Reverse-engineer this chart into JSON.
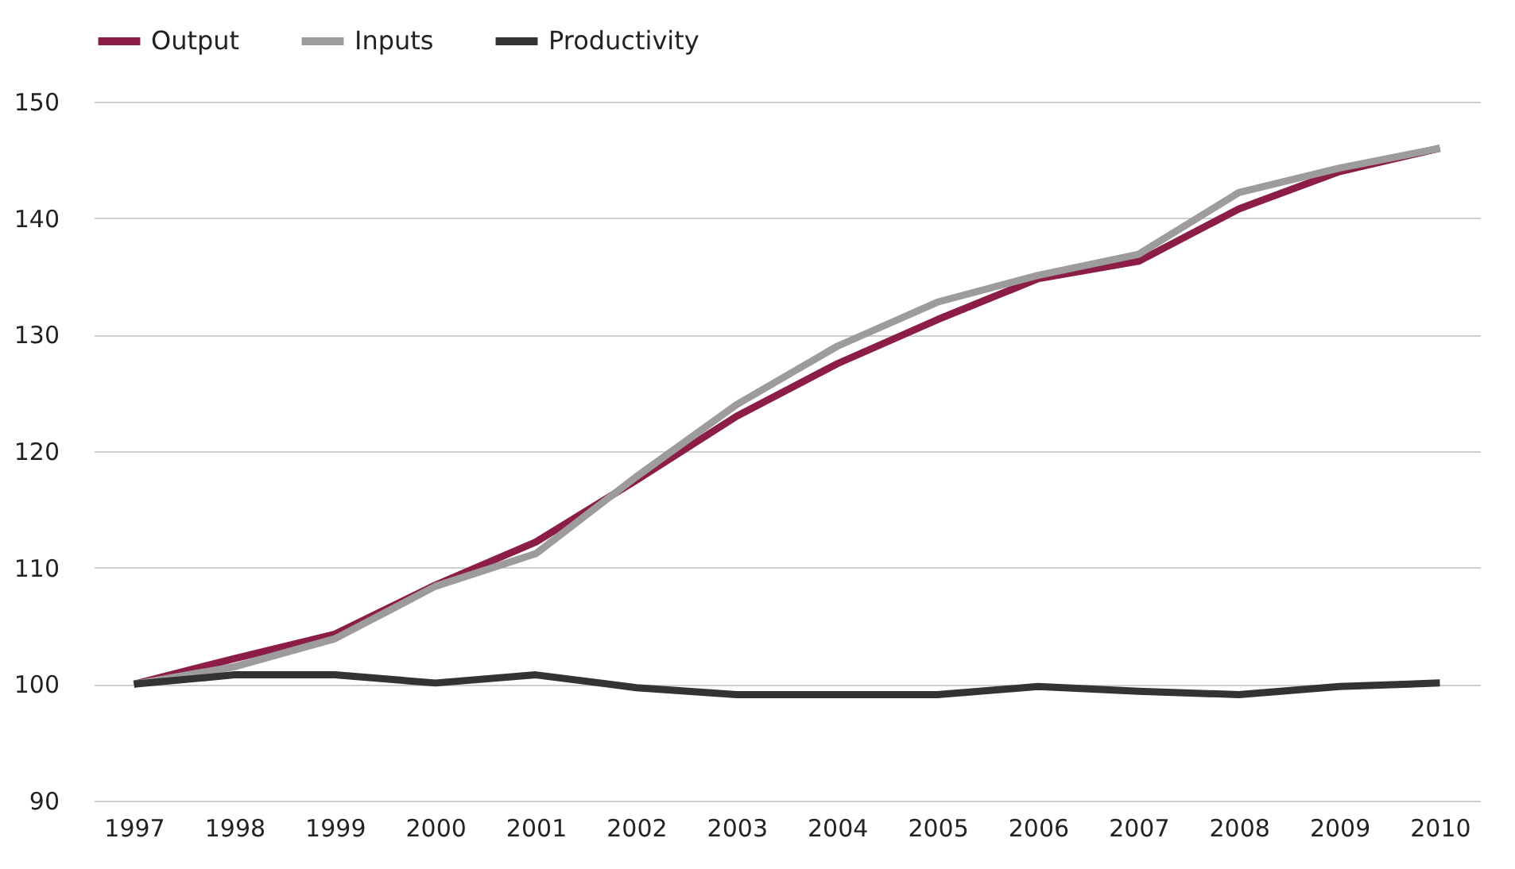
{
  "chart_data": {
    "type": "line",
    "categories": [
      "1997",
      "1998",
      "1999",
      "2000",
      "2001",
      "2002",
      "2003",
      "2004",
      "2005",
      "2006",
      "2007",
      "2008",
      "2009",
      "2010"
    ],
    "series": [
      {
        "name": "Output",
        "color": "#8c1d47",
        "values": [
          100,
          102.2,
          104.3,
          108.5,
          112.2,
          117.5,
          123,
          127.5,
          131.3,
          134.8,
          136.3,
          140.8,
          144,
          146
        ]
      },
      {
        "name": "Inputs",
        "color": "#9d9b9b",
        "values": [
          100,
          101.5,
          103.9,
          108.4,
          111.2,
          117.8,
          124,
          129,
          132.8,
          135.1,
          136.9,
          142.2,
          144.3,
          146
        ]
      },
      {
        "name": "Productivity",
        "color": "#333333",
        "values": [
          100,
          100.8,
          100.8,
          100.1,
          100.8,
          99.7,
          99.1,
          99.1,
          99.1,
          99.8,
          99.4,
          99.1,
          99.8,
          100.1
        ]
      }
    ],
    "ylim": [
      90,
      150
    ],
    "yticks": [
      90,
      100,
      110,
      120,
      130,
      140,
      150
    ],
    "grid": "y",
    "legend": "top left",
    "marker": "none",
    "line_style": "solid"
  }
}
